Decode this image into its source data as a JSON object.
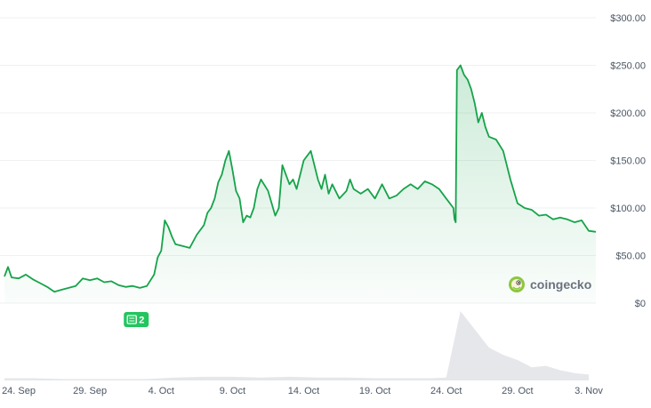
{
  "chart_data": {
    "type": "area",
    "title": "",
    "xlabel": "",
    "ylabel": "",
    "ylim": [
      0,
      300
    ],
    "x_range": [
      "2023-09-23",
      "2023-11-03"
    ],
    "y_ticks": [
      {
        "value": 0,
        "label": "$0"
      },
      {
        "value": 50,
        "label": "$50.00"
      },
      {
        "value": 100,
        "label": "$100.00"
      },
      {
        "value": 150,
        "label": "$150.00"
      },
      {
        "value": 200,
        "label": "$200.00"
      },
      {
        "value": 250,
        "label": "$250.00"
      },
      {
        "value": 300,
        "label": "$300.00"
      }
    ],
    "x_ticks": [
      {
        "date": "2023-09-24",
        "label": "24. Sep"
      },
      {
        "date": "2023-09-29",
        "label": "29. Sep"
      },
      {
        "date": "2023-10-04",
        "label": "4. Oct"
      },
      {
        "date": "2023-10-09",
        "label": "9. Oct"
      },
      {
        "date": "2023-10-14",
        "label": "14. Oct"
      },
      {
        "date": "2023-10-19",
        "label": "19. Oct"
      },
      {
        "date": "2023-10-24",
        "label": "24. Oct"
      },
      {
        "date": "2023-10-29",
        "label": "29. Oct"
      },
      {
        "date": "2023-11-03",
        "label": "3. Nov"
      }
    ],
    "grid": true,
    "colors": {
      "line": "#16a34a",
      "fill": "#16a34a",
      "volume": "#e5e7eb",
      "grid": "#eef0f2",
      "badge": "#22c55e"
    },
    "series": [
      {
        "kind": "price",
        "x": [
          "2023-09-23T00:00",
          "2023-09-23T06:00",
          "2023-09-23T12:00",
          "2023-09-24T00:00",
          "2023-09-24T12:00",
          "2023-09-25T00:00",
          "2023-09-25T12:00",
          "2023-09-26T00:00",
          "2023-09-26T12:00",
          "2023-09-27T00:00",
          "2023-09-27T12:00",
          "2023-09-28T00:00",
          "2023-09-28T12:00",
          "2023-09-29T00:00",
          "2023-09-29T12:00",
          "2023-09-30T00:00",
          "2023-09-30T12:00",
          "2023-10-01T00:00",
          "2023-10-01T12:00",
          "2023-10-02T00:00",
          "2023-10-02T12:00",
          "2023-10-03T00:00",
          "2023-10-03T12:00",
          "2023-10-03T18:00",
          "2023-10-04T00:00",
          "2023-10-04T06:00",
          "2023-10-04T12:00",
          "2023-10-04T18:00",
          "2023-10-05T00:00",
          "2023-10-05T12:00",
          "2023-10-06T00:00",
          "2023-10-06T12:00",
          "2023-10-07T00:00",
          "2023-10-07T06:00",
          "2023-10-07T12:00",
          "2023-10-07T18:00",
          "2023-10-08T00:00",
          "2023-10-08T06:00",
          "2023-10-08T12:00",
          "2023-10-08T18:00",
          "2023-10-09T00:00",
          "2023-10-09T06:00",
          "2023-10-09T12:00",
          "2023-10-09T18:00",
          "2023-10-10T00:00",
          "2023-10-10T06:00",
          "2023-10-10T12:00",
          "2023-10-10T18:00",
          "2023-10-11T00:00",
          "2023-10-11T12:00",
          "2023-10-12T00:00",
          "2023-10-12T06:00",
          "2023-10-12T12:00",
          "2023-10-13T00:00",
          "2023-10-13T06:00",
          "2023-10-13T12:00",
          "2023-10-14T00:00",
          "2023-10-14T12:00",
          "2023-10-14T18:00",
          "2023-10-15T00:00",
          "2023-10-15T06:00",
          "2023-10-15T12:00",
          "2023-10-15T18:00",
          "2023-10-16T00:00",
          "2023-10-16T12:00",
          "2023-10-17T00:00",
          "2023-10-17T06:00",
          "2023-10-17T12:00",
          "2023-10-18T00:00",
          "2023-10-18T12:00",
          "2023-10-19T00:00",
          "2023-10-19T12:00",
          "2023-10-20T00:00",
          "2023-10-20T12:00",
          "2023-10-21T00:00",
          "2023-10-21T12:00",
          "2023-10-22T00:00",
          "2023-10-22T12:00",
          "2023-10-23T00:00",
          "2023-10-23T12:00",
          "2023-10-24T00:00",
          "2023-10-24T06:00",
          "2023-10-24T12:00",
          "2023-10-24T14:00",
          "2023-10-24T16:00",
          "2023-10-24T18:00",
          "2023-10-25T00:00",
          "2023-10-25T06:00",
          "2023-10-25T12:00",
          "2023-10-25T18:00",
          "2023-10-26T00:00",
          "2023-10-26T06:00",
          "2023-10-26T12:00",
          "2023-10-26T18:00",
          "2023-10-27T00:00",
          "2023-10-27T12:00",
          "2023-10-28T00:00",
          "2023-10-28T12:00",
          "2023-10-29T00:00",
          "2023-10-29T12:00",
          "2023-10-30T00:00",
          "2023-10-30T12:00",
          "2023-10-31T00:00",
          "2023-10-31T12:00",
          "2023-11-01T00:00",
          "2023-11-01T12:00",
          "2023-11-02T00:00",
          "2023-11-02T12:00",
          "2023-11-03T00:00",
          "2023-11-03T12:00"
        ],
        "y": [
          28,
          38,
          27,
          26,
          30,
          25,
          21,
          17,
          12,
          14,
          16,
          18,
          26,
          24,
          26,
          22,
          23,
          19,
          17,
          18,
          16,
          18,
          30,
          48,
          55,
          87,
          80,
          70,
          62,
          60,
          58,
          72,
          82,
          95,
          100,
          110,
          127,
          135,
          150,
          160,
          140,
          118,
          110,
          85,
          92,
          90,
          100,
          120,
          130,
          118,
          92,
          100,
          145,
          125,
          130,
          120,
          150,
          160,
          145,
          130,
          120,
          135,
          115,
          125,
          110,
          118,
          130,
          120,
          115,
          120,
          110,
          125,
          110,
          113,
          120,
          125,
          120,
          128,
          125,
          120,
          110,
          105,
          100,
          88,
          85,
          245,
          250,
          240,
          235,
          225,
          210,
          190,
          200,
          185,
          175,
          172,
          160,
          130,
          105,
          100,
          98,
          92,
          93,
          88,
          90,
          88,
          85,
          87,
          76,
          75
        ]
      },
      {
        "kind": "volume",
        "x": [
          "2023-09-23",
          "2023-09-25",
          "2023-09-27",
          "2023-09-29",
          "2023-10-01",
          "2023-10-03",
          "2023-10-05",
          "2023-10-07",
          "2023-10-09",
          "2023-10-11",
          "2023-10-13",
          "2023-10-15",
          "2023-10-17",
          "2023-10-19",
          "2023-10-21",
          "2023-10-23",
          "2023-10-24",
          "2023-10-25",
          "2023-10-26",
          "2023-10-27",
          "2023-10-28",
          "2023-10-29",
          "2023-10-30",
          "2023-10-31",
          "2023-11-01",
          "2023-11-02",
          "2023-11-03"
        ],
        "y": [
          3,
          3,
          2,
          2,
          2,
          2,
          4,
          5,
          5,
          4,
          5,
          4,
          4,
          3,
          3,
          3,
          4,
          95,
          70,
          45,
          35,
          28,
          18,
          20,
          14,
          10,
          8
        ]
      }
    ],
    "annotations": [
      {
        "date": "2023-10-02",
        "label": "2",
        "icon": "news-icon"
      }
    ],
    "watermark": {
      "text": "coingecko",
      "icon": "gecko-logo-icon"
    }
  }
}
